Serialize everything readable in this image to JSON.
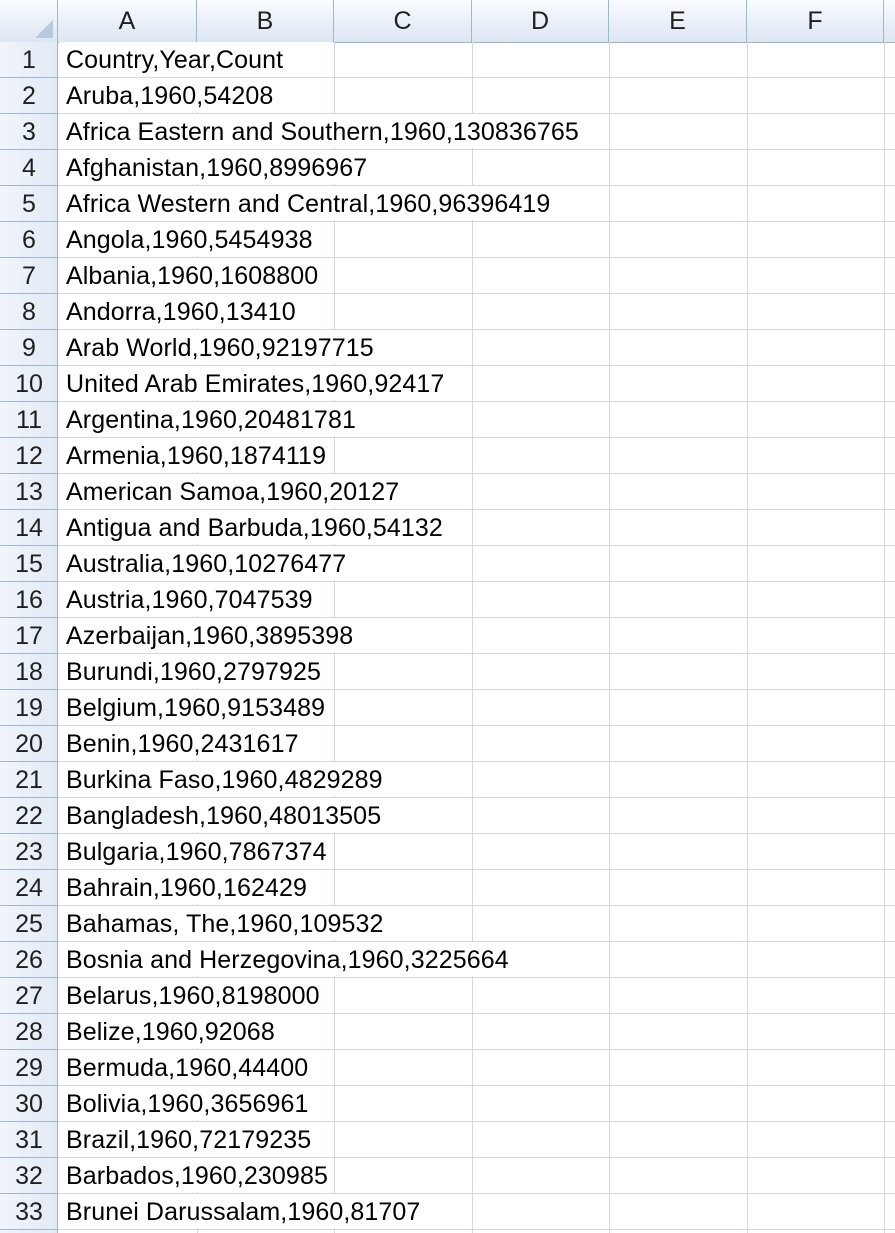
{
  "columns": [
    "A",
    "B",
    "C",
    "D",
    "E",
    "F"
  ],
  "rows": [
    {
      "num": "1",
      "text": "Country,Year,Count"
    },
    {
      "num": "2",
      "text": "Aruba,1960,54208"
    },
    {
      "num": "3",
      "text": "Africa Eastern and Southern,1960,130836765"
    },
    {
      "num": "4",
      "text": "Afghanistan,1960,8996967"
    },
    {
      "num": "5",
      "text": "Africa Western and Central,1960,96396419"
    },
    {
      "num": "6",
      "text": "Angola,1960,5454938"
    },
    {
      "num": "7",
      "text": "Albania,1960,1608800"
    },
    {
      "num": "8",
      "text": "Andorra,1960,13410"
    },
    {
      "num": "9",
      "text": "Arab World,1960,92197715"
    },
    {
      "num": "10",
      "text": "United Arab Emirates,1960,92417"
    },
    {
      "num": "11",
      "text": "Argentina,1960,20481781"
    },
    {
      "num": "12",
      "text": "Armenia,1960,1874119"
    },
    {
      "num": "13",
      "text": "American Samoa,1960,20127"
    },
    {
      "num": "14",
      "text": "Antigua and Barbuda,1960,54132"
    },
    {
      "num": "15",
      "text": "Australia,1960,10276477"
    },
    {
      "num": "16",
      "text": "Austria,1960,7047539"
    },
    {
      "num": "17",
      "text": "Azerbaijan,1960,3895398"
    },
    {
      "num": "18",
      "text": "Burundi,1960,2797925"
    },
    {
      "num": "19",
      "text": "Belgium,1960,9153489"
    },
    {
      "num": "20",
      "text": "Benin,1960,2431617"
    },
    {
      "num": "21",
      "text": "Burkina Faso,1960,4829289"
    },
    {
      "num": "22",
      "text": "Bangladesh,1960,48013505"
    },
    {
      "num": "23",
      "text": "Bulgaria,1960,7867374"
    },
    {
      "num": "24",
      "text": "Bahrain,1960,162429"
    },
    {
      "num": "25",
      "text": "Bahamas, The,1960,109532"
    },
    {
      "num": "26",
      "text": "Bosnia and Herzegovina,1960,3225664"
    },
    {
      "num": "27",
      "text": "Belarus,1960,8198000"
    },
    {
      "num": "28",
      "text": "Belize,1960,92068"
    },
    {
      "num": "29",
      "text": "Bermuda,1960,44400"
    },
    {
      "num": "30",
      "text": "Bolivia,1960,3656961"
    },
    {
      "num": "31",
      "text": "Brazil,1960,72179235"
    },
    {
      "num": "32",
      "text": "Barbados,1960,230985"
    },
    {
      "num": "33",
      "text": "Brunei Darussalam,1960,81707"
    }
  ]
}
